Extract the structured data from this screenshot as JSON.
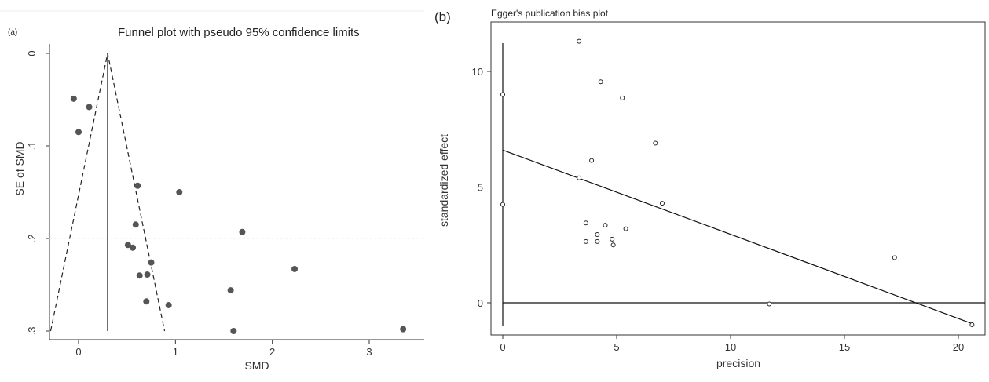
{
  "chart_data": [
    {
      "panel_label": "(a)",
      "type": "scatter",
      "title": "Funnel plot with pseudo 95% confidence limits",
      "xlabel": "SMD",
      "ylabel": "SE of SMD",
      "x_ticks": [
        0,
        1,
        2,
        3
      ],
      "y_ticks": [
        0,
        0.1,
        0.2,
        0.3
      ],
      "y_tick_labels": [
        "0",
        ".1",
        ".2",
        ".3"
      ],
      "xlim": [
        -0.45,
        3.55
      ],
      "ylim": [
        0,
        0.3
      ],
      "y_reversed": true,
      "pooled_effect": 0.3,
      "funnel_slope": 1.96,
      "point_color": "#555555",
      "points": [
        {
          "x": -0.05,
          "y": 0.049
        },
        {
          "x": 0.11,
          "y": 0.058
        },
        {
          "x": 0.0,
          "y": 0.085
        },
        {
          "x": 0.61,
          "y": 0.143
        },
        {
          "x": 1.04,
          "y": 0.15
        },
        {
          "x": 0.59,
          "y": 0.185
        },
        {
          "x": 1.69,
          "y": 0.193
        },
        {
          "x": 0.51,
          "y": 0.207
        },
        {
          "x": 0.56,
          "y": 0.21
        },
        {
          "x": 0.75,
          "y": 0.226
        },
        {
          "x": 2.23,
          "y": 0.233
        },
        {
          "x": 0.63,
          "y": 0.24
        },
        {
          "x": 0.71,
          "y": 0.239
        },
        {
          "x": 1.57,
          "y": 0.256
        },
        {
          "x": 0.7,
          "y": 0.268
        },
        {
          "x": 0.93,
          "y": 0.272
        },
        {
          "x": 1.6,
          "y": 0.3
        },
        {
          "x": 3.35,
          "y": 0.298
        }
      ]
    },
    {
      "panel_label": "(b)",
      "type": "scatter",
      "title": "Egger's publication bias plot",
      "xlabel": "precision",
      "ylabel": "standardized effect",
      "x_ticks": [
        0,
        5,
        10,
        15,
        20
      ],
      "y_ticks": [
        0,
        5,
        10
      ],
      "xlim": [
        -0.6,
        20.8
      ],
      "ylim": [
        -1.5,
        11.6
      ],
      "regression": {
        "intercept": 6.6,
        "x_end": 20.6,
        "y_end": -0.9
      },
      "points": [
        {
          "x": 0.0,
          "y": 9.0
        },
        {
          "x": 0.0,
          "y": 4.25
        },
        {
          "x": 3.35,
          "y": 11.3
        },
        {
          "x": 4.3,
          "y": 9.55
        },
        {
          "x": 5.25,
          "y": 8.85
        },
        {
          "x": 6.7,
          "y": 6.9
        },
        {
          "x": 3.9,
          "y": 6.15
        },
        {
          "x": 3.35,
          "y": 5.4
        },
        {
          "x": 7.0,
          "y": 4.3
        },
        {
          "x": 3.65,
          "y": 3.45
        },
        {
          "x": 4.5,
          "y": 3.35
        },
        {
          "x": 5.4,
          "y": 3.2
        },
        {
          "x": 4.15,
          "y": 2.95
        },
        {
          "x": 3.65,
          "y": 2.65
        },
        {
          "x": 4.15,
          "y": 2.65
        },
        {
          "x": 4.8,
          "y": 2.75
        },
        {
          "x": 4.85,
          "y": 2.5
        },
        {
          "x": 17.2,
          "y": 1.95
        },
        {
          "x": 11.7,
          "y": -0.05
        },
        {
          "x": 20.6,
          "y": -0.95
        }
      ]
    }
  ]
}
